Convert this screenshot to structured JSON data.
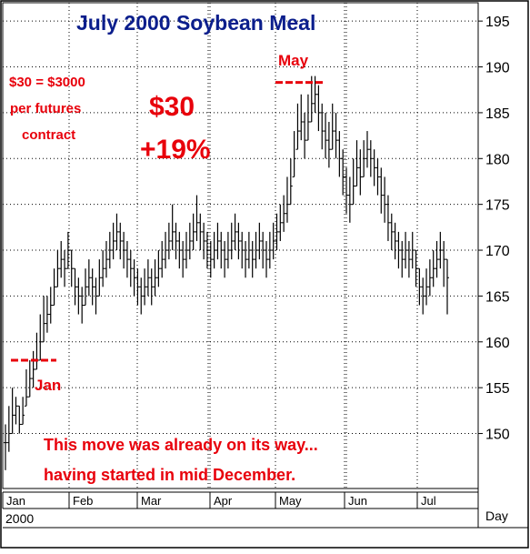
{
  "chart_data": {
    "type": "ohlc",
    "title": "July 2000 Soybean Meal",
    "xlabel": "Day",
    "ylabel": "",
    "x_tick_labels": [
      "Jan",
      "Feb",
      "Mar",
      "Apr",
      "May",
      "Jun",
      "Jul"
    ],
    "year_label": "2000",
    "ylim": [
      144,
      197
    ],
    "y_ticks": [
      150,
      155,
      160,
      165,
      170,
      175,
      180,
      185,
      190,
      195
    ],
    "y_axis_position": "right",
    "grid": true,
    "grid_style": "dotted",
    "legend": "none",
    "colors": {
      "title": "#0b1e8c",
      "annotation": "#e8000b",
      "bars": "#000000",
      "grid": "#000000"
    },
    "annotations": {
      "conversion_line1": "$30 = $3000",
      "conversion_line2": "per futures",
      "conversion_line3": "contract",
      "move_amount": "$30",
      "move_percent": "+19%",
      "low_label": "Jan",
      "high_label": "May",
      "low_marker_price": 158,
      "high_marker_price": 188.3,
      "note_line1": "This move was already on its way...",
      "note_line2": "having started in mid December."
    },
    "close_path": [
      149,
      150,
      152,
      153,
      151,
      152,
      154,
      156,
      157,
      158,
      160,
      162,
      163,
      164,
      166,
      168,
      169,
      168,
      170,
      168,
      166,
      165,
      164,
      166,
      167,
      166,
      165,
      167,
      168,
      169,
      170,
      171,
      172,
      171,
      170,
      169,
      168,
      167,
      166,
      165,
      166,
      167,
      166,
      167,
      168,
      169,
      170,
      171,
      172,
      171,
      170,
      169,
      170,
      171,
      172,
      173,
      172,
      171,
      170,
      169,
      170,
      171,
      170,
      169,
      170,
      171,
      172,
      171,
      170,
      169,
      170,
      169,
      170,
      171,
      170,
      169,
      170,
      171,
      172,
      173,
      174,
      175,
      177,
      180,
      183,
      184,
      182,
      184,
      186,
      187,
      185,
      183,
      182,
      181,
      183,
      182,
      180,
      178,
      176,
      175,
      177,
      179,
      178,
      180,
      181,
      180,
      179,
      178,
      176,
      175,
      173,
      172,
      171,
      170,
      169,
      170,
      169,
      170,
      168,
      166,
      165,
      166,
      167,
      168,
      169,
      170,
      169,
      167
    ],
    "bar_ranges": [
      [
        146,
        151
      ],
      [
        148,
        153
      ],
      [
        150,
        155
      ],
      [
        151,
        154
      ],
      [
        150,
        153
      ],
      [
        151,
        154
      ],
      [
        153,
        157
      ],
      [
        154,
        158
      ],
      [
        155,
        159
      ],
      [
        157,
        161
      ],
      [
        158,
        163
      ],
      [
        160,
        165
      ],
      [
        161,
        165
      ],
      [
        162,
        166
      ],
      [
        164,
        168
      ],
      [
        166,
        170
      ],
      [
        167,
        171
      ],
      [
        166,
        170
      ],
      [
        168,
        172
      ],
      [
        166,
        170
      ],
      [
        164,
        168
      ],
      [
        163,
        167
      ],
      [
        162,
        166
      ],
      [
        164,
        168
      ],
      [
        165,
        169
      ],
      [
        164,
        168
      ],
      [
        163,
        167
      ],
      [
        165,
        169
      ],
      [
        166,
        170
      ],
      [
        167,
        171
      ],
      [
        168,
        172
      ],
      [
        169,
        173
      ],
      [
        170,
        174
      ],
      [
        169,
        173
      ],
      [
        168,
        172
      ],
      [
        167,
        171
      ],
      [
        166,
        170
      ],
      [
        165,
        169
      ],
      [
        164,
        168
      ],
      [
        163,
        167
      ],
      [
        164,
        168
      ],
      [
        165,
        169
      ],
      [
        164,
        168
      ],
      [
        165,
        169
      ],
      [
        166,
        170
      ],
      [
        167,
        171
      ],
      [
        168,
        172
      ],
      [
        169,
        173
      ],
      [
        170,
        175
      ],
      [
        169,
        173
      ],
      [
        168,
        172
      ],
      [
        167,
        171
      ],
      [
        168,
        172
      ],
      [
        169,
        173
      ],
      [
        170,
        174
      ],
      [
        171,
        176
      ],
      [
        170,
        174
      ],
      [
        169,
        173
      ],
      [
        168,
        172
      ],
      [
        167,
        171
      ],
      [
        168,
        172
      ],
      [
        169,
        173
      ],
      [
        168,
        172
      ],
      [
        167,
        171
      ],
      [
        168,
        172
      ],
      [
        169,
        173
      ],
      [
        170,
        174
      ],
      [
        169,
        173
      ],
      [
        168,
        172
      ],
      [
        167,
        171
      ],
      [
        168,
        172
      ],
      [
        167,
        171
      ],
      [
        168,
        172
      ],
      [
        169,
        173
      ],
      [
        168,
        172
      ],
      [
        167,
        171
      ],
      [
        168,
        172
      ],
      [
        169,
        173
      ],
      [
        170,
        174
      ],
      [
        171,
        175
      ],
      [
        172,
        176
      ],
      [
        173,
        178
      ],
      [
        175,
        180
      ],
      [
        178,
        183
      ],
      [
        181,
        186
      ],
      [
        182,
        187
      ],
      [
        180,
        185
      ],
      [
        182,
        187
      ],
      [
        184,
        189
      ],
      [
        185,
        189
      ],
      [
        183,
        188
      ],
      [
        181,
        186
      ],
      [
        180,
        185
      ],
      [
        179,
        184
      ],
      [
        181,
        186
      ],
      [
        180,
        185
      ],
      [
        178,
        183
      ],
      [
        176,
        181
      ],
      [
        174,
        179
      ],
      [
        173,
        178
      ],
      [
        175,
        180
      ],
      [
        177,
        182
      ],
      [
        176,
        181
      ],
      [
        178,
        182
      ],
      [
        179,
        183
      ],
      [
        178,
        182
      ],
      [
        177,
        181
      ],
      [
        176,
        180
      ],
      [
        174,
        179
      ],
      [
        173,
        178
      ],
      [
        171,
        176
      ],
      [
        170,
        174
      ],
      [
        169,
        173
      ],
      [
        168,
        172
      ],
      [
        167,
        171
      ],
      [
        168,
        172
      ],
      [
        167,
        171
      ],
      [
        168,
        172
      ],
      [
        166,
        170
      ],
      [
        164,
        168
      ],
      [
        163,
        167
      ],
      [
        164,
        168
      ],
      [
        165,
        169
      ],
      [
        166,
        170
      ],
      [
        167,
        171
      ],
      [
        168,
        172
      ],
      [
        166,
        171
      ],
      [
        163,
        169
      ]
    ]
  }
}
